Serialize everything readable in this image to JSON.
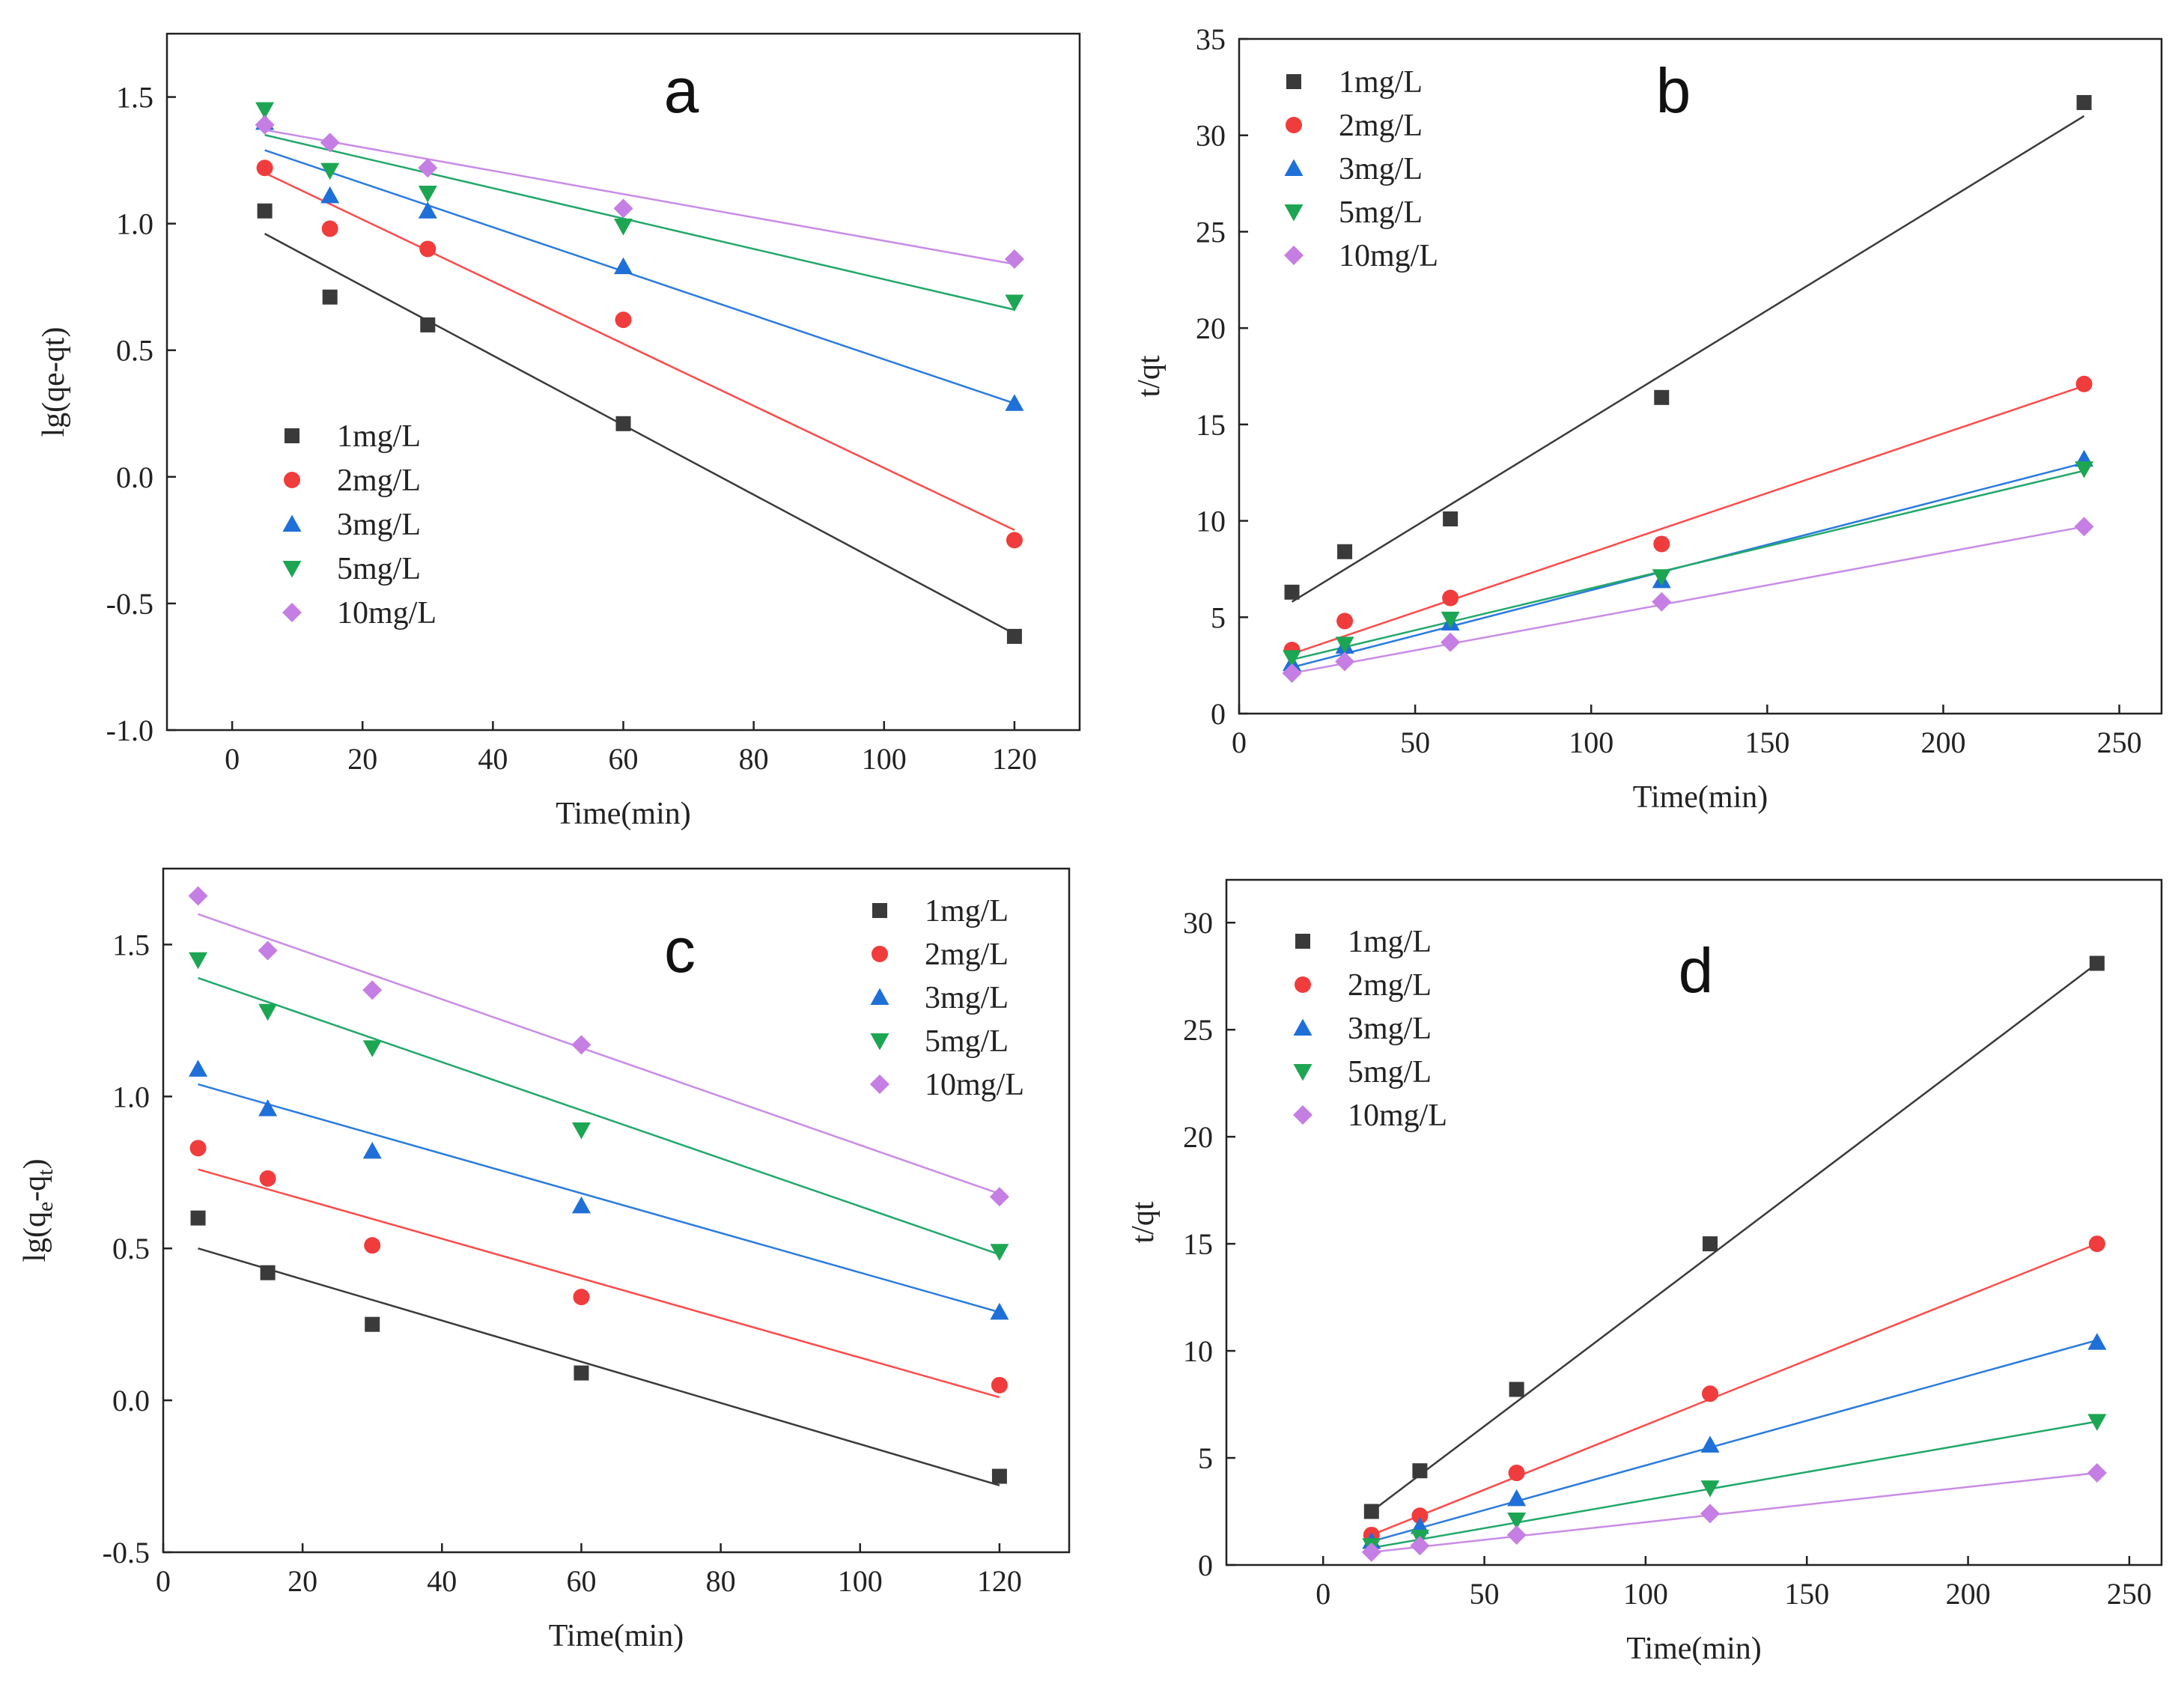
{
  "colors": {
    "1mg/L": "#3a3a3a",
    "2mg/L": "#f03c3c",
    "3mg/L": "#1f6fd8",
    "5mg/L": "#1ca653",
    "10mg/L": "#c57ee3"
  },
  "chart_data": [
    {
      "panel": "a",
      "type": "scatter",
      "xlabel": "Time(min)",
      "ylabel": "lg(qe-qt)",
      "xlim": [
        -10,
        130
      ],
      "ylim": [
        -1.0,
        1.75
      ],
      "xticks": [
        0,
        20,
        40,
        60,
        80,
        100,
        120
      ],
      "yticks": [
        -1.0,
        -0.5,
        0.0,
        0.5,
        1.0,
        1.5
      ],
      "ytick_labels": [
        "-1.0",
        "-0.5",
        "0.0",
        "0.5",
        "1.0",
        "1.5"
      ],
      "legend_position": "middle-left",
      "x": [
        5,
        15,
        30,
        60,
        120
      ],
      "series": [
        {
          "name": "1mg/L",
          "marker": "square",
          "values": [
            1.05,
            0.71,
            0.6,
            0.21,
            -0.63
          ],
          "fit": [
            0.96,
            -0.62
          ]
        },
        {
          "name": "2mg/L",
          "marker": "circle",
          "values": [
            1.22,
            0.98,
            0.9,
            0.62,
            -0.25
          ],
          "fit": [
            1.2,
            -0.21
          ]
        },
        {
          "name": "3mg/L",
          "marker": "triangle-up",
          "values": [
            1.4,
            1.11,
            1.05,
            0.83,
            0.29
          ],
          "fit": [
            1.29,
            0.29
          ]
        },
        {
          "name": "5mg/L",
          "marker": "triangle-down",
          "values": [
            1.45,
            1.21,
            1.12,
            0.99,
            0.69
          ],
          "fit": [
            1.35,
            0.66
          ]
        },
        {
          "name": "10mg/L",
          "marker": "diamond",
          "values": [
            1.39,
            1.32,
            1.22,
            1.06,
            0.86
          ],
          "fit": [
            1.37,
            0.84
          ]
        }
      ]
    },
    {
      "panel": "b",
      "type": "scatter",
      "xlabel": "Time(min)",
      "ylabel": "t/qt",
      "xlim": [
        0,
        262
      ],
      "ylim": [
        0,
        35
      ],
      "xticks": [
        0,
        50,
        100,
        150,
        200,
        250
      ],
      "yticks": [
        0,
        5,
        10,
        15,
        20,
        25,
        30,
        35
      ],
      "ytick_labels": [
        "0",
        "5",
        "10",
        "15",
        "20",
        "25",
        "30",
        "35"
      ],
      "legend_position": "top-left",
      "x": [
        15,
        30,
        60,
        120,
        240
      ],
      "series": [
        {
          "name": "1mg/L",
          "marker": "square",
          "values": [
            6.3,
            8.4,
            10.1,
            16.4,
            31.7
          ],
          "fit": [
            5.8,
            31.0
          ]
        },
        {
          "name": "2mg/L",
          "marker": "circle",
          "values": [
            3.3,
            4.8,
            6.0,
            8.8,
            17.1
          ],
          "fit": [
            3.1,
            17.0
          ]
        },
        {
          "name": "3mg/L",
          "marker": "triangle-up",
          "values": [
            2.6,
            3.5,
            4.7,
            6.9,
            13.2
          ],
          "fit": [
            2.4,
            13.0
          ]
        },
        {
          "name": "5mg/L",
          "marker": "triangle-down",
          "values": [
            2.9,
            3.6,
            4.9,
            7.1,
            12.7
          ],
          "fit": [
            2.8,
            12.6
          ]
        },
        {
          "name": "10mg/L",
          "marker": "diamond",
          "values": [
            2.1,
            2.7,
            3.7,
            5.8,
            9.7
          ],
          "fit": [
            2.1,
            9.7
          ]
        }
      ]
    },
    {
      "panel": "c",
      "type": "scatter",
      "xlabel": "Time(min)",
      "ylabel": "lg(qe-qt)",
      "ylabel_display": {
        "base": "lg(q",
        "sub1": "e",
        "mid": "-q",
        "sub2": "t",
        "end": ")"
      },
      "xlim": [
        0,
        130
      ],
      "ylim": [
        -0.5,
        1.75
      ],
      "xticks": [
        0,
        20,
        40,
        60,
        80,
        100,
        120
      ],
      "yticks": [
        -0.5,
        0.0,
        0.5,
        1.0,
        1.5
      ],
      "ytick_labels": [
        "-0.5",
        "0.0",
        "0.5",
        "1.0",
        "1.5"
      ],
      "legend_position": "top-right",
      "x": [
        5,
        15,
        30,
        60,
        120
      ],
      "series": [
        {
          "name": "1mg/L",
          "marker": "square",
          "values": [
            0.6,
            0.42,
            0.25,
            0.09,
            -0.25
          ],
          "fit": [
            0.5,
            -0.28
          ]
        },
        {
          "name": "2mg/L",
          "marker": "circle",
          "values": [
            0.83,
            0.73,
            0.51,
            0.34,
            0.05
          ],
          "fit": [
            0.76,
            0.01
          ]
        },
        {
          "name": "3mg/L",
          "marker": "triangle-up",
          "values": [
            1.09,
            0.96,
            0.82,
            0.64,
            0.29
          ],
          "fit": [
            1.04,
            0.29
          ]
        },
        {
          "name": "5mg/L",
          "marker": "triangle-down",
          "values": [
            1.45,
            1.28,
            1.16,
            0.89,
            0.49
          ],
          "fit": [
            1.39,
            0.48
          ]
        },
        {
          "name": "10mg/L",
          "marker": "diamond",
          "values": [
            1.66,
            1.48,
            1.35,
            1.17,
            0.67
          ],
          "fit": [
            1.6,
            0.68
          ]
        }
      ]
    },
    {
      "panel": "d",
      "type": "scatter",
      "xlabel": "Time(min)",
      "ylabel": "t/qt",
      "xlim": [
        -30,
        260
      ],
      "ylim": [
        0,
        32
      ],
      "xticks": [
        0,
        50,
        100,
        150,
        200,
        250
      ],
      "yticks": [
        0,
        5,
        10,
        15,
        20,
        25,
        30
      ],
      "ytick_labels": [
        "0",
        "5",
        "10",
        "15",
        "20",
        "25",
        "30"
      ],
      "legend_position": "top-left",
      "x": [
        15,
        30,
        60,
        120,
        240
      ],
      "series": [
        {
          "name": "1mg/L",
          "marker": "square",
          "values": [
            2.5,
            4.4,
            8.2,
            15.0,
            28.1
          ],
          "fit": [
            2.5,
            28.1
          ]
        },
        {
          "name": "2mg/L",
          "marker": "circle",
          "values": [
            1.4,
            2.3,
            4.3,
            8.0,
            15.0
          ],
          "fit": [
            1.4,
            15.0
          ]
        },
        {
          "name": "3mg/L",
          "marker": "triangle-up",
          "values": [
            1.1,
            1.8,
            3.1,
            5.6,
            10.4
          ],
          "fit": [
            1.1,
            10.5
          ]
        },
        {
          "name": "5mg/L",
          "marker": "triangle-down",
          "values": [
            0.9,
            1.3,
            2.1,
            3.6,
            6.7
          ],
          "fit": [
            0.8,
            6.7
          ]
        },
        {
          "name": "10mg/L",
          "marker": "diamond",
          "values": [
            0.6,
            0.9,
            1.4,
            2.4,
            4.3
          ],
          "fit": [
            0.6,
            4.3
          ]
        }
      ]
    }
  ]
}
